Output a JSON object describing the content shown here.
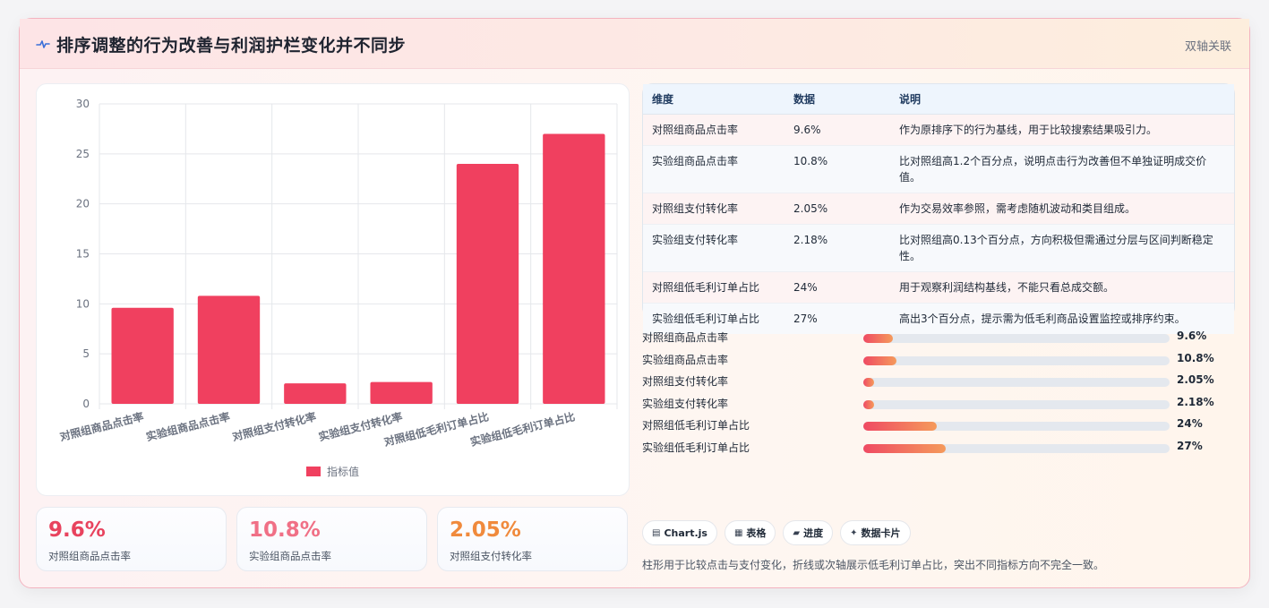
{
  "header": {
    "title": "排序调整的行为改善与利润护栏变化并不同步",
    "badge": "双轴关联",
    "icon": "pulse-icon"
  },
  "chart_data": {
    "type": "bar",
    "categories": [
      "对照组商品点击率",
      "实验组商品点击率",
      "对照组支付转化率",
      "实验组支付转化率",
      "对照组低毛利订单占比",
      "实验组低毛利订单占比"
    ],
    "series": [
      {
        "name": "指标值",
        "values": [
          9.6,
          10.8,
          2.05,
          2.18,
          24,
          27
        ],
        "color": "#f0405f"
      }
    ],
    "ylim": [
      0,
      30
    ],
    "yticks": [
      0,
      5,
      10,
      15,
      20,
      25,
      30
    ],
    "grid": true,
    "legend": "bottom"
  },
  "kpis": [
    {
      "value": "9.6%",
      "label": "对照组商品点击率",
      "color": "#e8435e"
    },
    {
      "value": "10.8%",
      "label": "实验组商品点击率",
      "color": "#f07086"
    },
    {
      "value": "2.05%",
      "label": "对照组支付转化率",
      "color": "#f08a3c"
    }
  ],
  "table": {
    "headers": [
      "维度",
      "数据",
      "说明"
    ],
    "rows": [
      [
        "对照组商品点击率",
        "9.6%",
        "作为原排序下的行为基线，用于比较搜索结果吸引力。"
      ],
      [
        "实验组商品点击率",
        "10.8%",
        "比对照组高1.2个百分点，说明点击行为改善但不单独证明成交价值。"
      ],
      [
        "对照组支付转化率",
        "2.05%",
        "作为交易效率参照，需考虑随机波动和类目组成。"
      ],
      [
        "实验组支付转化率",
        "2.18%",
        "比对照组高0.13个百分点，方向积极但需通过分层与区间判断稳定性。"
      ],
      [
        "对照组低毛利订单占比",
        "24%",
        "用于观察利润结构基线，不能只看总成交额。"
      ],
      [
        "实验组低毛利订单占比",
        "27%",
        "高出3个百分点，提示需为低毛利商品设置监控或排序约束。"
      ]
    ]
  },
  "progress": [
    {
      "label": "对照组商品点击率",
      "value": "9.6%",
      "percent": 9.6
    },
    {
      "label": "实验组商品点击率",
      "value": "10.8%",
      "percent": 10.8
    },
    {
      "label": "对照组支付转化率",
      "value": "2.05%",
      "percent": 2.05
    },
    {
      "label": "实验组支付转化率",
      "value": "2.18%",
      "percent": 2.18
    },
    {
      "label": "对照组低毛利订单占比",
      "value": "24%",
      "percent": 24
    },
    {
      "label": "实验组低毛利订单占比",
      "value": "27%",
      "percent": 27
    }
  ],
  "tags": [
    {
      "icon": "▤",
      "label": "Chart.js"
    },
    {
      "icon": "▦",
      "label": "表格"
    },
    {
      "icon": "▰",
      "label": "进度"
    },
    {
      "icon": "✦",
      "label": "数据卡片"
    }
  ],
  "footnote": "柱形用于比较点击与支付变化，折线或次轴展示低毛利订单占比，突出不同指标方向不完全一致。"
}
